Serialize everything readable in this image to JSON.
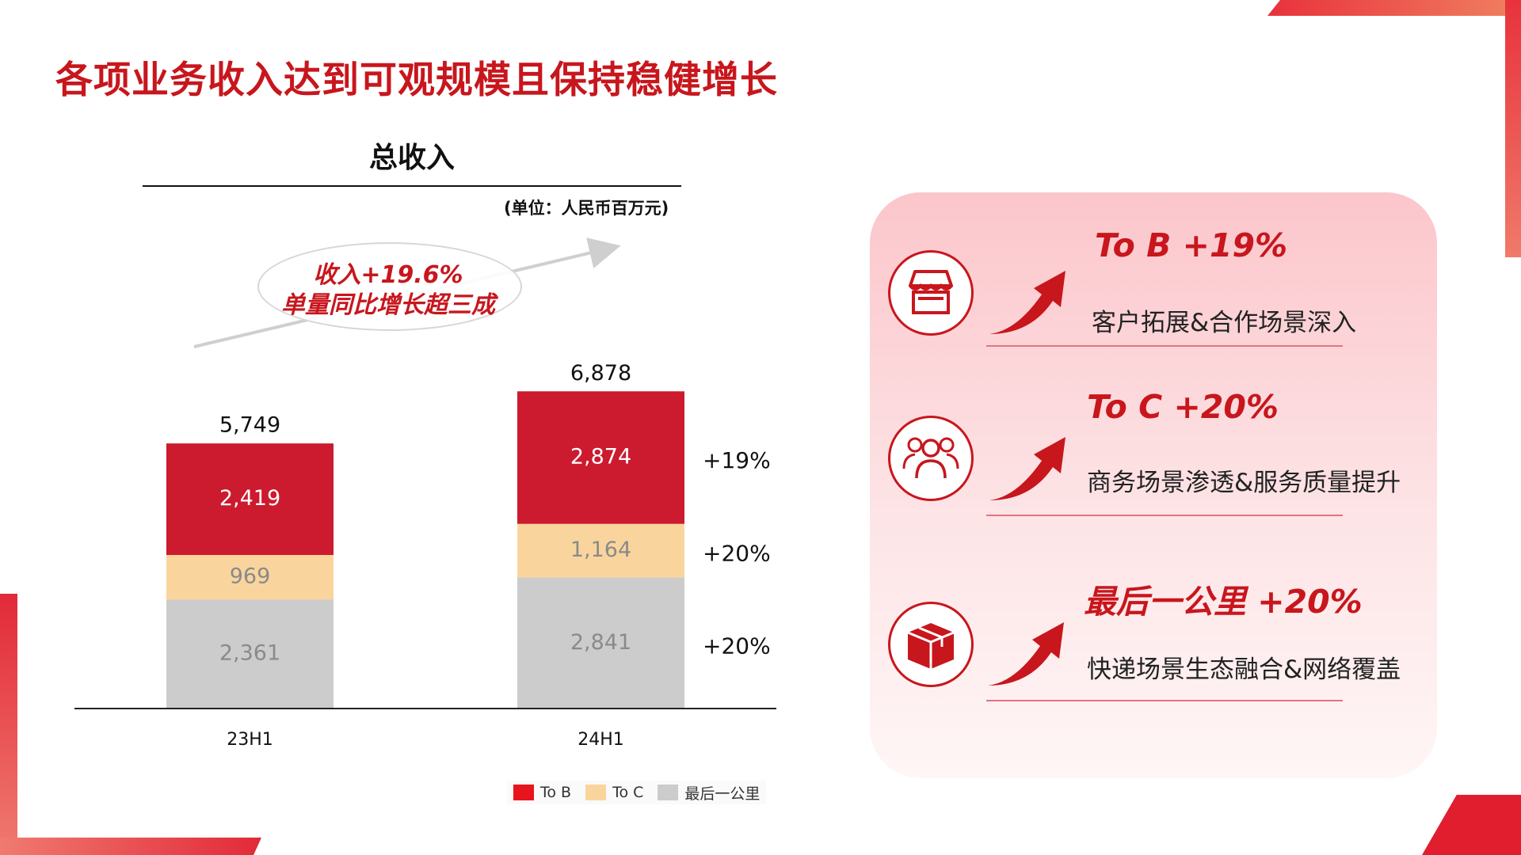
{
  "title": "各项业务收入达到可观规模且保持稳健增长",
  "chart": {
    "title": "总收入",
    "unit": "(单位：人民币百万元)",
    "callout_line1": "收入+19.6%",
    "callout_line2": "单量同比增长超三成"
  },
  "chart_data": {
    "type": "bar",
    "stacked": true,
    "title": "总收入",
    "unit": "(单位：人民币百万元)",
    "categories": [
      "23H1",
      "24H1"
    ],
    "series": [
      {
        "name": "最后一公里",
        "values": [
          2361,
          2841
        ],
        "color": "#cccccc",
        "label_color": "#8a8a8a"
      },
      {
        "name": "To C",
        "values": [
          969,
          1164
        ],
        "color": "#f9d59d",
        "label_color": "#8a8a8a"
      },
      {
        "name": "To B",
        "values": [
          2419,
          2874
        ],
        "color": "#cc1a2e",
        "label_color": "#ffffff"
      }
    ],
    "totals": [
      5749,
      6878
    ],
    "total_labels": [
      "5,749",
      "6,878"
    ],
    "value_labels": [
      [
        "2,361",
        "2,841"
      ],
      [
        "969",
        "1,164"
      ],
      [
        "2,419",
        "2,874"
      ]
    ],
    "growth_labels": [
      "+20%",
      "+20%",
      "+19%"
    ],
    "ylim": [
      0,
      8000
    ],
    "grid": false,
    "legend": "bottom",
    "legend_order": [
      "To B",
      "To C",
      "最后一公里"
    ]
  },
  "legend": {
    "tob": "To B",
    "toc": "To C",
    "lastmile": "最后一公里"
  },
  "segments": [
    {
      "title": "To B +19%",
      "desc": "客户拓展&合作场景深入",
      "icon": "store-icon"
    },
    {
      "title": "To C +20%",
      "desc": "商务场景渗透&服务质量提升",
      "icon": "users-icon"
    },
    {
      "title": "最后一公里 +20%",
      "desc": "快递场景生态融合&网络覆盖",
      "icon": "package-icon"
    }
  ],
  "colors": {
    "brand_red": "#c8161d",
    "tob": "#cc1a2e",
    "toc": "#f9d59d",
    "lastmile": "#cccccc"
  }
}
